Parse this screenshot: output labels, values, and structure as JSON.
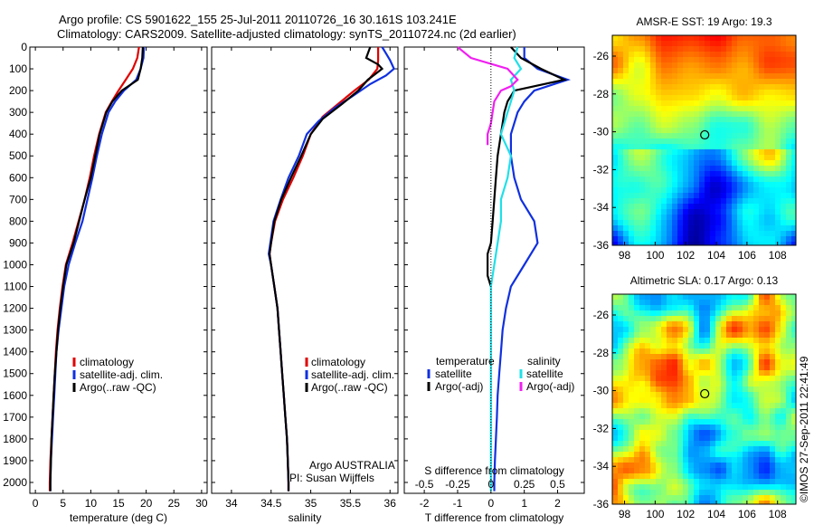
{
  "header": {
    "line1": "Argo profile: CS 5901622_155 25-Jul-2011 20110726_16 30.161S 103.241E",
    "line2": "Climatology: CARS2009. Satellite-adjusted climatology: synTS_20110724.nc (2d earlier)"
  },
  "footer": {
    "stamp": "©IMOS 27-Sep-2011 22:41:49"
  },
  "colors": {
    "climatology": "#e00000",
    "satellite": "#1030e0",
    "argo": "#000000",
    "sal_sat": "#20e0e8",
    "sal_argo": "#f020f0"
  },
  "chart_data": [
    {
      "id": "temperature",
      "type": "line",
      "xlabel": "temperature (deg C)",
      "xlim": [
        -1,
        31
      ],
      "xticks": [
        0,
        5,
        10,
        15,
        20,
        25,
        30
      ],
      "ylim": [
        0,
        2050
      ],
      "yticks": [
        0,
        100,
        200,
        300,
        400,
        500,
        600,
        700,
        800,
        900,
        1000,
        1100,
        1200,
        1300,
        1400,
        1500,
        1600,
        1700,
        1800,
        1900,
        2000
      ],
      "legend": [
        "climatology",
        "satellite-adj. clim.",
        "Argo(..raw -QC)"
      ],
      "series": [
        {
          "name": "climatology",
          "color": "#e00000",
          "points": [
            [
              18.7,
              0
            ],
            [
              18.4,
              50
            ],
            [
              17.6,
              100
            ],
            [
              16.3,
              150
            ],
            [
              15.0,
              200
            ],
            [
              13.8,
              250
            ],
            [
              12.7,
              300
            ],
            [
              11.5,
              400
            ],
            [
              10.6,
              500
            ],
            [
              9.8,
              600
            ],
            [
              8.9,
              700
            ],
            [
              7.8,
              800
            ],
            [
              6.7,
              900
            ],
            [
              5.5,
              1000
            ],
            [
              4.9,
              1100
            ],
            [
              4.4,
              1200
            ],
            [
              4.0,
              1300
            ],
            [
              3.7,
              1400
            ],
            [
              3.5,
              1500
            ],
            [
              3.3,
              1600
            ],
            [
              3.1,
              1700
            ],
            [
              2.9,
              1800
            ],
            [
              2.7,
              1900
            ],
            [
              2.6,
              2000
            ],
            [
              2.6,
              2040
            ]
          ]
        },
        {
          "name": "satellite-adj. clim.",
          "color": "#1030e0",
          "points": [
            [
              19.6,
              0
            ],
            [
              19.5,
              50
            ],
            [
              19.0,
              100
            ],
            [
              18.2,
              150
            ],
            [
              16.0,
              200
            ],
            [
              14.4,
              250
            ],
            [
              13.2,
              300
            ],
            [
              12.0,
              400
            ],
            [
              11.1,
              500
            ],
            [
              10.3,
              600
            ],
            [
              9.4,
              700
            ],
            [
              8.5,
              800
            ],
            [
              7.2,
              900
            ],
            [
              6.0,
              1000
            ],
            [
              5.2,
              1100
            ],
            [
              4.7,
              1200
            ],
            [
              4.2,
              1300
            ],
            [
              3.8,
              1400
            ],
            [
              3.6,
              1500
            ],
            [
              3.4,
              1600
            ],
            [
              3.2,
              1700
            ],
            [
              3.0,
              1800
            ],
            [
              2.8,
              1900
            ],
            [
              2.7,
              2000
            ],
            [
              2.7,
              2040
            ]
          ]
        },
        {
          "name": "Argo(..raw -QC)",
          "color": "#000000",
          "points": [
            [
              19.4,
              0
            ],
            [
              19.3,
              50
            ],
            [
              19.0,
              100
            ],
            [
              18.5,
              150
            ],
            [
              15.6,
              200
            ],
            [
              13.9,
              250
            ],
            [
              12.8,
              300
            ],
            [
              11.6,
              400
            ],
            [
              10.8,
              500
            ],
            [
              10.0,
              600
            ],
            [
              8.9,
              700
            ],
            [
              7.9,
              800
            ],
            [
              6.9,
              900
            ],
            [
              5.6,
              1000
            ],
            [
              5.0,
              1100
            ],
            [
              4.5,
              1200
            ],
            [
              4.1,
              1300
            ],
            [
              3.8,
              1400
            ],
            [
              3.5,
              1500
            ],
            [
              3.3,
              1600
            ],
            [
              3.1,
              1700
            ],
            [
              2.9,
              1800
            ],
            [
              2.8,
              1900
            ],
            [
              2.7,
              2000
            ],
            [
              2.7,
              2040
            ]
          ]
        }
      ]
    },
    {
      "id": "salinity",
      "type": "line",
      "xlabel": "salinity",
      "xlim": [
        33.75,
        36.1
      ],
      "xticks": [
        34,
        34.5,
        35,
        35.5,
        36
      ],
      "ylim": [
        0,
        2050
      ],
      "legend": [
        "climatology",
        "satellite-adj. clim.",
        "Argo(..raw -QC)"
      ],
      "annotation": [
        "Argo AUSTRALIA",
        "PI: Susan Wijffels"
      ],
      "series": [
        {
          "name": "climatology",
          "color": "#e00000",
          "points": [
            [
              35.85,
              0
            ],
            [
              35.85,
              60
            ],
            [
              35.84,
              100
            ],
            [
              35.73,
              150
            ],
            [
              35.55,
              200
            ],
            [
              35.35,
              260
            ],
            [
              35.15,
              320
            ],
            [
              35.0,
              400
            ],
            [
              34.9,
              500
            ],
            [
              34.78,
              600
            ],
            [
              34.65,
              700
            ],
            [
              34.55,
              800
            ],
            [
              34.5,
              900
            ],
            [
              34.48,
              950
            ],
            [
              34.5,
              1000
            ],
            [
              34.54,
              1100
            ],
            [
              34.58,
              1200
            ],
            [
              34.6,
              1300
            ],
            [
              34.62,
              1400
            ],
            [
              34.64,
              1500
            ],
            [
              34.66,
              1600
            ],
            [
              34.68,
              1700
            ],
            [
              34.7,
              1800
            ],
            [
              34.71,
              1900
            ],
            [
              34.72,
              2000
            ],
            [
              34.72,
              2040
            ]
          ]
        },
        {
          "name": "satellite-adj. clim.",
          "color": "#1030e0",
          "points": [
            [
              35.9,
              0
            ],
            [
              35.95,
              30
            ],
            [
              36.0,
              60
            ],
            [
              36.05,
              100
            ],
            [
              35.95,
              130
            ],
            [
              35.75,
              170
            ],
            [
              35.55,
              220
            ],
            [
              35.3,
              280
            ],
            [
              35.1,
              340
            ],
            [
              34.95,
              400
            ],
            [
              34.85,
              500
            ],
            [
              34.72,
              600
            ],
            [
              34.62,
              700
            ],
            [
              34.53,
              800
            ],
            [
              34.49,
              900
            ],
            [
              34.47,
              950
            ],
            [
              34.5,
              1000
            ],
            [
              34.54,
              1100
            ],
            [
              34.58,
              1200
            ],
            [
              34.6,
              1300
            ],
            [
              34.62,
              1400
            ],
            [
              34.64,
              1500
            ],
            [
              34.66,
              1600
            ],
            [
              34.68,
              1700
            ],
            [
              34.7,
              1800
            ],
            [
              34.71,
              1900
            ],
            [
              34.72,
              2000
            ],
            [
              34.72,
              2040
            ]
          ]
        },
        {
          "name": "Argo(..raw -QC)",
          "color": "#000000",
          "points": [
            [
              35.75,
              0
            ],
            [
              35.7,
              50
            ],
            [
              35.85,
              80
            ],
            [
              35.9,
              100
            ],
            [
              35.72,
              150
            ],
            [
              35.6,
              200
            ],
            [
              35.4,
              260
            ],
            [
              35.15,
              330
            ],
            [
              35.0,
              400
            ],
            [
              34.88,
              500
            ],
            [
              34.75,
              600
            ],
            [
              34.63,
              700
            ],
            [
              34.54,
              800
            ],
            [
              34.5,
              900
            ],
            [
              34.48,
              950
            ],
            [
              34.5,
              1000
            ],
            [
              34.54,
              1100
            ],
            [
              34.58,
              1200
            ],
            [
              34.6,
              1300
            ],
            [
              34.62,
              1400
            ],
            [
              34.64,
              1500
            ],
            [
              34.66,
              1600
            ],
            [
              34.68,
              1700
            ],
            [
              34.7,
              1800
            ],
            [
              34.71,
              1900
            ],
            [
              34.72,
              2000
            ],
            [
              34.72,
              2040
            ]
          ]
        }
      ]
    },
    {
      "id": "difference",
      "type": "line",
      "xlabel": "T difference from climatology",
      "xlim": [
        -2.6,
        2.8
      ],
      "xticks": [
        -2,
        -1,
        0,
        1,
        2
      ],
      "xlabel_top": "S difference from climatology",
      "xticks_top": [
        "-0.5",
        "-0.25",
        "0",
        "0.25",
        "0.5"
      ],
      "xticks_top_pos": [
        -2,
        -1,
        0,
        1,
        2
      ],
      "ylim": [
        0,
        2050
      ],
      "legend_temp_title": "temperature",
      "legend_sal_title": "salinity",
      "legend_temp": [
        "satellite",
        "Argo(-adj)"
      ],
      "legend_sal": [
        "satellite",
        "Argo(-adj)"
      ],
      "series": [
        {
          "name": "satellite",
          "color": "#1030e0",
          "points": [
            [
              1.0,
              0
            ],
            [
              1.0,
              50
            ],
            [
              1.4,
              100
            ],
            [
              2.3,
              150
            ],
            [
              1.3,
              200
            ],
            [
              1.0,
              250
            ],
            [
              0.8,
              300
            ],
            [
              0.6,
              400
            ],
            [
              0.6,
              500
            ],
            [
              0.7,
              600
            ],
            [
              0.9,
              700
            ],
            [
              1.3,
              800
            ],
            [
              1.4,
              900
            ],
            [
              1.0,
              1000
            ],
            [
              0.6,
              1100
            ],
            [
              0.45,
              1200
            ],
            [
              0.35,
              1300
            ],
            [
              0.3,
              1400
            ],
            [
              0.25,
              1500
            ],
            [
              0.2,
              1600
            ],
            [
              0.18,
              1700
            ],
            [
              0.15,
              1800
            ],
            [
              0.12,
              1900
            ],
            [
              0.1,
              2000
            ],
            [
              0.1,
              2040
            ]
          ]
        },
        {
          "name": "Argo(-adj)",
          "color": "#000000",
          "points": [
            [
              0.6,
              0
            ],
            [
              0.9,
              50
            ],
            [
              1.5,
              100
            ],
            [
              2.2,
              150
            ],
            [
              0.7,
              200
            ],
            [
              0.5,
              250
            ],
            [
              0.4,
              300
            ],
            [
              0.3,
              400
            ],
            [
              0.2,
              500
            ],
            [
              0.15,
              600
            ],
            [
              0.1,
              700
            ],
            [
              0.05,
              800
            ],
            [
              0.0,
              900
            ],
            [
              -0.1,
              950
            ],
            [
              -0.1,
              1000
            ],
            [
              -0.1,
              1050
            ],
            [
              0.0,
              1100
            ]
          ]
        },
        {
          "name": "satellite (S)",
          "color": "#20e0e8",
          "points": [
            [
              0.8,
              0
            ],
            [
              0.7,
              50
            ],
            [
              0.9,
              100
            ],
            [
              0.6,
              150
            ],
            [
              0.7,
              200
            ],
            [
              0.5,
              300
            ],
            [
              0.3,
              400
            ],
            [
              0.6,
              500
            ],
            [
              0.5,
              600
            ],
            [
              0.3,
              700
            ],
            [
              0.3,
              800
            ],
            [
              0.2,
              900
            ],
            [
              0.1,
              1000
            ],
            [
              0.0,
              1100
            ],
            [
              0.0,
              1200
            ],
            [
              0.0,
              1400
            ],
            [
              0.0,
              1600
            ],
            [
              0.0,
              1800
            ],
            [
              0.0,
              2040
            ]
          ]
        },
        {
          "name": "Argo(-adj) (S)",
          "color": "#f020f0",
          "points": [
            [
              -1.0,
              0
            ],
            [
              -0.6,
              50
            ],
            [
              0.5,
              100
            ],
            [
              0.8,
              150
            ],
            [
              0.6,
              180
            ],
            [
              0.3,
              200
            ],
            [
              0.1,
              250
            ],
            [
              0.0,
              350
            ],
            [
              -0.1,
              400
            ],
            [
              -0.1,
              450
            ]
          ]
        }
      ]
    },
    {
      "id": "sst_map",
      "type": "heatmap",
      "title": "AMSR-E SST: 19 Argo: 19.3",
      "xticks": [
        98,
        100,
        102,
        104,
        106,
        108
      ],
      "yticks": [
        -26,
        -28,
        -30,
        -32,
        -34,
        -36
      ],
      "xlim": [
        97.2,
        109.2
      ],
      "ylim": [
        -36,
        -24.9
      ],
      "marker": [
        103.241,
        -30.161
      ]
    },
    {
      "id": "sla_map",
      "type": "heatmap",
      "title": "Altimetric SLA: 0.17 Argo: 0.13",
      "xticks": [
        98,
        100,
        102,
        104,
        106,
        108
      ],
      "yticks": [
        -26,
        -28,
        -30,
        -32,
        -34,
        -36
      ],
      "xlim": [
        97.2,
        109.2
      ],
      "ylim": [
        -36,
        -24.9
      ],
      "marker": [
        103.241,
        -30.161
      ]
    }
  ]
}
